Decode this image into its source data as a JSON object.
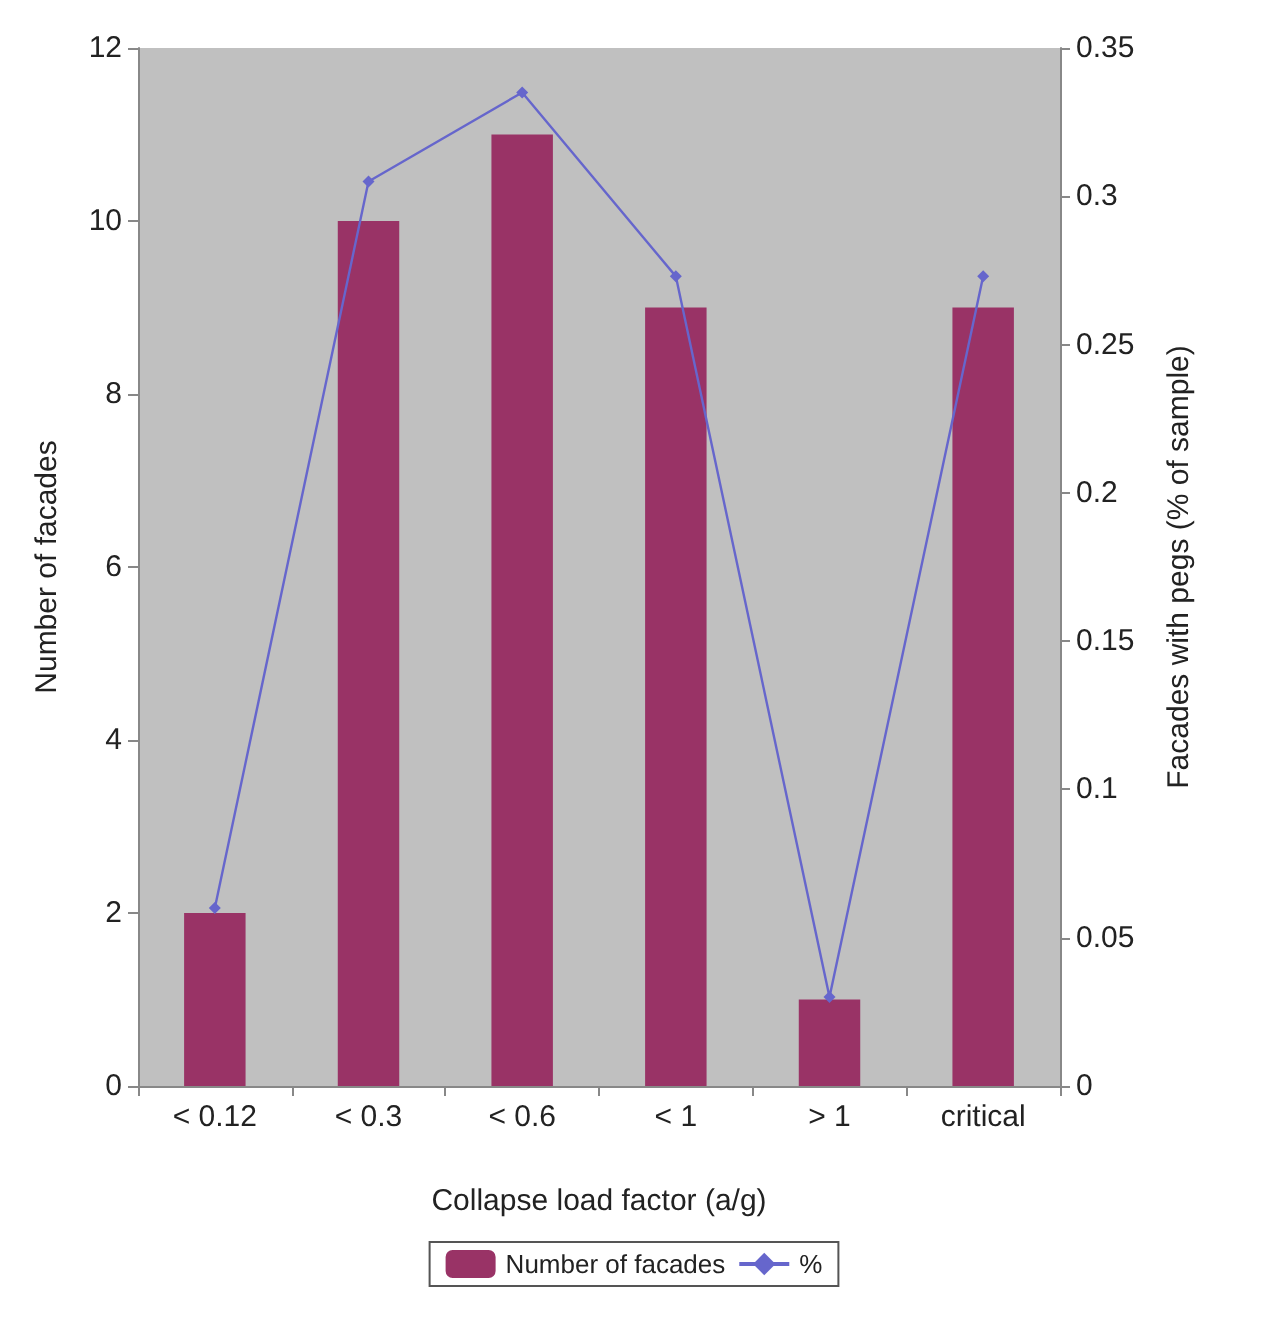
{
  "chart_data": {
    "type": "bar",
    "xlabel": "Collapse load factor (a/g)",
    "ylabel": "Number of facades",
    "y2label": "Facades with pegs (% of sample)",
    "categories": [
      "< 0.12",
      "< 0.3",
      "< 0.6",
      "< 1",
      "> 1",
      "critical"
    ],
    "series": [
      {
        "name": "Number of facades",
        "color": "#993366",
        "values": [
          2,
          10,
          11,
          9,
          1,
          9
        ]
      },
      {
        "name": "%",
        "type": "line",
        "axis": "y2",
        "color": "#6666cc",
        "marker": "diamond",
        "values": [
          0.06,
          0.305,
          0.335,
          0.273,
          0.03,
          0.273
        ]
      }
    ],
    "ylim": [
      0,
      12
    ],
    "yticks": [
      0,
      2,
      4,
      6,
      8,
      10,
      12
    ],
    "y2lim": [
      0,
      0.35
    ],
    "y2ticks": [
      0,
      0.05,
      0.1,
      0.15,
      0.2,
      0.25,
      0.3,
      0.35
    ],
    "grid": false,
    "legend": "bottom"
  }
}
